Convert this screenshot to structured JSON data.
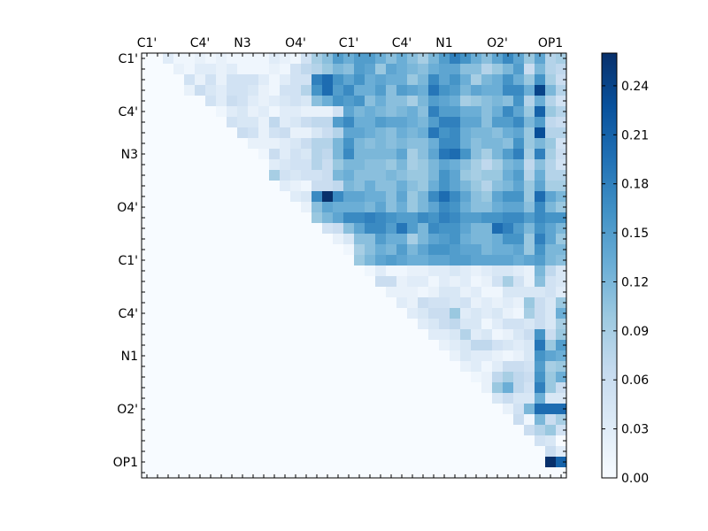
{
  "chart_data": {
    "type": "heatmap",
    "title": "",
    "xlabel": "",
    "ylabel": "",
    "colormap": "Blues",
    "n": 40,
    "x_tick_labels": [
      {
        "index": 0,
        "label": "C1'"
      },
      {
        "index": 5,
        "label": "C4'"
      },
      {
        "index": 9,
        "label": "N3"
      },
      {
        "index": 14,
        "label": "O4'"
      },
      {
        "index": 19,
        "label": "C1'"
      },
      {
        "index": 24,
        "label": "C4'"
      },
      {
        "index": 28,
        "label": "N1"
      },
      {
        "index": 33,
        "label": "O2'"
      },
      {
        "index": 38,
        "label": "OP1"
      }
    ],
    "y_tick_labels": [
      {
        "index": 0,
        "label": "C1'"
      },
      {
        "index": 5,
        "label": "C4'"
      },
      {
        "index": 9,
        "label": "N3"
      },
      {
        "index": 14,
        "label": "O4'"
      },
      {
        "index": 19,
        "label": "C1'"
      },
      {
        "index": 24,
        "label": "C4'"
      },
      {
        "index": 28,
        "label": "N1"
      },
      {
        "index": 33,
        "label": "O2'"
      },
      {
        "index": 38,
        "label": "OP1"
      }
    ],
    "colorbar": {
      "min": 0.0,
      "max": 0.26,
      "ticks": [
        0.0,
        0.03,
        0.06,
        0.09,
        0.12,
        0.15,
        0.18,
        0.21,
        0.24
      ],
      "tick_labels": [
        "0.00",
        "0.03",
        "0.06",
        "0.09",
        "0.12",
        "0.15",
        "0.18",
        "0.21",
        "0.24"
      ]
    },
    "colorscale_hex": [
      "#f7fbff",
      "#deebf7",
      "#c6dbef",
      "#9ecae1",
      "#6baed6",
      "#4292c6",
      "#2171b5",
      "#08519c",
      "#08306b"
    ],
    "matrix_rows": [
      "0 0 0.03 0.01 0.01 0.02 0.01 0.02 0.01 0.01 0.01 0.01 0.03 0.02 0.01 0.05 0.09 0.11 0.15 0.13 0.15 0.15 0.13 0.11 0.13 0.11 0.09 0.12 0.15 0.18 0.16 0.13 0.11 0.14 0.17 0.14 0.1 0.14 0.08 0.09",
      "0 0 0 0.02 0.01 0.03 0.03 0.02 0.03 0.01 0.01 0.01 0.02 0.01 0.05 0.07 0.08 0.1 0.12 0.11 0.15 0.14 0.1 0.14 0.13 0.12 0.11 0.13 0.14 0.14 0.11 0.11 0.08 0.1 0.12 0.15 0.06 0.12 0.08 0.07",
      "0 0 0 0 0.05 0.02 0.05 0.02 0.05 0.05 0.05 0.03 0.01 0.03 0.05 0.05 0.18 0.2 0.16 0.14 0.16 0.13 0.14 0.13 0.13 0.1 0.12 0.17 0.14 0.16 0.13 0.09 0.12 0.13 0.16 0.13 0.1 0.16 0.09 0.06",
      "0 0 0 0 0.02 0.06 0.04 0.03 0.05 0.05 0.04 0.02 0.01 0.05 0.05 0.08 0.16 0.2 0.15 0.17 0.13 0.13 0.15 0.11 0.15 0.14 0.13 0.19 0.16 0.15 0.12 0.14 0.13 0.13 0.17 0.17 0.13 0.24 0.12 0.08",
      "0 0 0 0 0 0 0.05 0.03 0.06 0.05 0.03 0.02 0.03 0.04 0.05 0.04 0.11 0.13 0.16 0.15 0.16 0.11 0.13 0.11 0.11 0.09 0.12 0.15 0.14 0.13 0.09 0.1 0.11 0.12 0.11 0.16 0.08 0.13 0.08 0.05",
      "0 0 0 0 0 0 0 0.01 0.03 0.04 0.02 0.03 0.01 0.03 0.03 0.02 0.02 0.02 0.05 0.14 0.12 0.13 0.12 0.11 0.12 0.13 0.11 0.18 0.15 0.15 0.13 0.13 0.11 0.13 0.17 0.14 0.1 0.21 0.1 0.08",
      "0 0 0 0 0 0 0 0 0.05 0.04 0.04 0.02 0.07 0.03 0.04 0.06 0.07 0.07 0.15 0.17 0.13 0.13 0.15 0.14 0.14 0.13 0.12 0.15 0.18 0.18 0.14 0.14 0.11 0.15 0.15 0.17 0.12 0.15 0.07 0.06",
      "0 0 0 0 0 0 0 0 0 0.06 0.05 0.02 0.05 0.06 0.02 0.02 0.04 0.06 0.08 0.14 0.14 0.13 0.12 0.11 0.13 0.12 0.13 0.19 0.16 0.17 0.13 0.12 0.12 0.11 0.13 0.14 0.1 0.23 0.08 0.08",
      "0 0 0 0 0 0 0 0 0 0 0.02 0.02 0.02 0.03 0.04 0.06 0.08 0.08 0.12 0.16 0.12 0.11 0.12 0.11 0.12 0.11 0.11 0.13 0.17 0.17 0.13 0.11 0.12 0.12 0.11 0.16 0.1 0.12 0.1 0.05",
      "0 0 0 0 0 0 0 0 0 0 0 0.01 0.06 0.03 0.05 0.04 0.08 0.07 0.12 0.17 0.12 0.12 0.12 0.12 0.14 0.09 0.11 0.14 0.19 0.2 0.16 0.11 0.09 0.12 0.15 0.18 0.09 0.18 0.09 0.06",
      "0 0 0 0 0 0 0 0 0 0 0 0 0.03 0.04 0.05 0.05 0.08 0.06 0.1 0.12 0.12 0.11 0.11 0.1 0.12 0.09 0.1 0.12 0.14 0.13 0.11 0.09 0.07 0.09 0.12 0.13 0.07 0.11 0.08 0.05",
      "0 0 0 0 0 0 0 0 0 0 0 0 0.09 0.05 0.04 0.05 0.05 0.06 0.12 0.13 0.11 0.11 0.11 0.12 0.11 0.1 0.1 0.12 0.16 0.14 0.1 0.09 0.1 0.1 0.13 0.15 0.08 0.13 0.08 0.08",
      "0 0 0 0 0 0 0 0 0 0 0 0 0 0.03 0.02 0.01 0.06 0.06 0.07 0.12 0.11 0.13 0.11 0.11 0.13 0.11 0.1 0.13 0.16 0.14 0.12 0.1 0.08 0.11 0.12 0.14 0.1 0.14 0.09 0.09",
      "0 0 0 0 0 0 0 0 0 0 0 0 0 0 0.03 0.04 0.17 0.26 0.17 0.14 0.14 0.13 0.13 0.11 0.14 0.1 0.12 0.17 0.2 0.17 0.14 0.11 0.1 0.14 0.16 0.16 0.1 0.2 0.14 0.12",
      "0 0 0 0 0 0 0 0 0 0 0 0 0 0 0 0.02 0.11 0.14 0.13 0.13 0.13 0.12 0.14 0.11 0.13 0.1 0.12 0.14 0.17 0.16 0.13 0.11 0.11 0.13 0.14 0.14 0.11 0.17 0.12 0.1",
      "0 0 0 0 0 0 0 0 0 0 0 0 0 0 0 0 0.1 0.12 0.14 0.17 0.17 0.18 0.17 0.16 0.15 0.15 0.17 0.16 0.18 0.17 0.15 0.15 0.16 0.16 0.17 0.17 0.15 0.17 0.16 0.16",
      "0 0 0 0 0 0 0 0 0 0 0 0 0 0 0 0 0 0.05 0.06 0.11 0.14 0.17 0.17 0.15 0.19 0.15 0.12 0.17 0.16 0.16 0.14 0.12 0.12 0.2 0.18 0.15 0.12 0.16 0.14 0.12",
      "0 0 0 0 0 0 0 0 0 0 0 0 0 0 0 0 0 0 0.02 0.04 0.11 0.11 0.15 0.13 0.13 0.09 0.12 0.14 0.15 0.16 0.13 0.12 0.12 0.13 0.16 0.16 0.1 0.18 0.14 0.1",
      "0 0 0 0 0 0 0 0 0 0 0 0 0 0 0 0 0 0 0 0.01 0.09 0.11 0.13 0.12 0.15 0.12 0.14 0.16 0.16 0.15 0.14 0.14 0.12 0.13 0.13 0.14 0.1 0.16 0.12 0.12",
      "0 0 0 0 0 0 0 0 0 0 0 0 0 0 0 0 0 0 0 0 0.1 0.12 0.14 0.15 0.14 0.13 0.13 0.14 0.14 0.15 0.15 0.14 0.14 0.14 0.14 0.13 0.14 0.15 0.12 0.11",
      "0 0 0 0 0 0 0 0 0 0 0 0 0 0 0 0 0 0 0 0 0 0.01 0.03 0.01 0.01 0.02 0.02 0.03 0.03 0.04 0.03 0.02 0.03 0.04 0.04 0.03 0.02 0.12 0.07 0.04",
      "0 0 0 0 0 0 0 0 0 0 0 0 0 0 0 0 0 0 0 0 0 0 0.06 0.06 0.02 0.03 0.03 0.01 0.03 0.02 0.03 0.01 0.02 0.05 0.09 0.05 0.02 0.11 0.05 0.04",
      "0 0 0 0 0 0 0 0 0 0 0 0 0 0 0 0 0 0 0 0 0 0 0 0.02 0.02 0.02 0.01 0.02 0.04 0.04 0.02 0.03 0.01 0.01 0.04 0.04 0.04 0.04 0.05 0.03",
      "0 0 0 0 0 0 0 0 0 0 0 0 0 0 0 0 0 0 0 0 0 0 0 0 0.03 0.02 0.06 0.05 0.05 0.04 0.05 0.02 0.03 0.02 0.03 0.02 0.1 0.06 0.04 0.1",
      "0 0 0 0 0 0 0 0 0 0 0 0 0 0 0 0 0 0 0 0 0 0 0 0 0 0.03 0.04 0.06 0.06 0.1 0.03 0.04 0.03 0.04 0.02 0.01 0.09 0.06 0.04 0.13",
      "0 0 0 0 0 0 0 0 0 0 0 0 0 0 0 0 0 0 0 0 0 0 0 0 0 0 0.03 0.04 0.06 0.07 0.04 0.04 0.01 0.03 0.05 0.05 0.04 0.06 0.04 0.09",
      "0 0 0 0 0 0 0 0 0 0 0 0 0 0 0 0 0 0 0 0 0 0 0 0 0 0 0 0.03 0.03 0.04 0.08 0.03 0.04 0.01 0.02 0.04 0.06 0.16 0.06 0.1",
      "0 0 0 0 0 0 0 0 0 0 0 0 0 0 0 0 0 0 0 0 0 0 0 0 0 0 0 0 0.02 0.03 0.04 0.07 0.07 0.05 0.04 0.03 0.04 0.19 0.1 0.15",
      "0 0 0 0 0 0 0 0 0 0 0 0 0 0 0 0 0 0 0 0 0 0 0 0 0 0 0 0 0 0.02 0.04 0.03 0.03 0.02 0.01 0.02 0.04 0.16 0.14 0.13",
      "0 0 0 0 0 0 0 0 0 0 0 0 0 0 0 0 0 0 0 0 0 0 0 0 0 0 0 0 0 0 0.02 0.03 0.01 0.03 0.06 0.06 0.05 0.15 0.09 0.1",
      "0 0 0 0 0 0 0 0 0 0 0 0 0 0 0 0 0 0 0 0 0 0 0 0 0 0 0 0 0 0 0 0.01 0.02 0.07 0.09 0.07 0.06 0.16 0.1 0.13",
      "0 0 0 0 0 0 0 0 0 0 0 0 0 0 0 0 0 0 0 0 0 0 0 0 0 0 0 0 0 0 0 0 0.02 0.1 0.13 0.07 0.05 0.18 0.1 0.06",
      "0 0 0 0 0 0 0 0 0 0 0 0 0 0 0 0 0 0 0 0 0 0 0 0 0 0 0 0 0 0 0 0 0 0.04 0.06 0.04 0.04 0.13 0.04 0.04",
      "0 0 0 0 0 0 0 0 0 0 0 0 0 0 0 0 0 0 0 0 0 0 0 0 0 0 0 0 0 0 0 0 0 0 0.02 0.05 0.12 0.2 0.2 0.2",
      "0 0 0 0 0 0 0 0 0 0 0 0 0 0 0 0 0 0 0 0 0 0 0 0 0 0 0 0 0 0 0 0 0 0 0 0.06 0.01 0.12 0.06 0.09",
      "0 0 0 0 0 0 0 0 0 0 0 0 0 0 0 0 0 0 0 0 0 0 0 0 0 0 0 0 0 0 0 0 0 0 0 0 0.06 0.08 0.1 0.05",
      "0 0 0 0 0 0 0 0 0 0 0 0 0 0 0 0 0 0 0 0 0 0 0 0 0 0 0 0 0 0 0 0 0 0 0 0 0 0.05 0.04 0",
      "0 0 0 0 0 0 0 0 0 0 0 0 0 0 0 0 0 0 0 0 0 0 0 0 0 0 0 0 0 0 0 0 0 0 0 0 0 0 0.06 0.03",
      "0 0 0 0 0 0 0 0 0 0 0 0 0 0 0 0 0 0 0 0 0 0 0 0 0 0 0 0 0 0 0 0 0 0 0 0 0 0 0.26 0.21",
      "0 0 0 0 0 0 0 0 0 0 0 0 0 0 0 0 0 0 0 0 0 0 0 0 0 0 0 0 0 0 0 0 0 0 0 0 0 0 0 0"
    ]
  }
}
